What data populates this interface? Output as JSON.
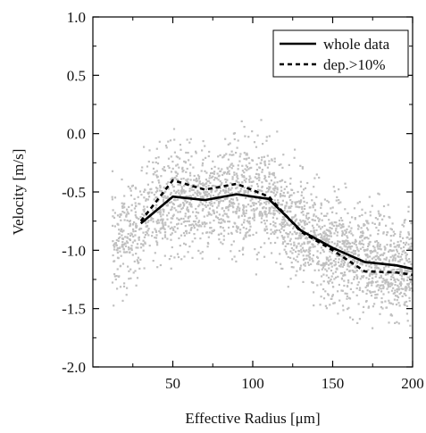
{
  "chart_data": {
    "type": "line",
    "xlabel": "Effective Radius [μm]",
    "ylabel": "Velocity [m/s]",
    "xlim": [
      0,
      200
    ],
    "ylim": [
      -2.0,
      1.0
    ],
    "x_ticks": [
      50,
      100,
      150,
      200
    ],
    "y_ticks": [
      -2.0,
      -1.5,
      -1.0,
      -0.5,
      0.0,
      0.5,
      1.0
    ],
    "x_tick_labels": [
      "50",
      "100",
      "150",
      "200"
    ],
    "y_tick_labels": [
      "-2.0",
      "-1.5",
      "-1.0",
      "-0.5",
      "0.0",
      "0.5",
      "1.0"
    ],
    "grid": false,
    "legend_position": "top-right",
    "series": [
      {
        "name": "whole data",
        "style": "solid",
        "color": "#000000",
        "x": [
          30,
          50,
          70,
          90,
          110,
          130,
          150,
          170,
          190,
          200
        ],
        "y": [
          -0.77,
          -0.54,
          -0.57,
          -0.52,
          -0.56,
          -0.83,
          -0.98,
          -1.1,
          -1.13,
          -1.16
        ]
      },
      {
        "name": "dep.>10%",
        "style": "dashed",
        "color": "#000000",
        "x": [
          30,
          50,
          70,
          90,
          110,
          130,
          150,
          170,
          190,
          200
        ],
        "y": [
          -0.75,
          -0.4,
          -0.48,
          -0.43,
          -0.54,
          -0.84,
          -1.0,
          -1.18,
          -1.19,
          -1.21
        ]
      }
    ],
    "scatter_color": "#c0c0c0"
  }
}
